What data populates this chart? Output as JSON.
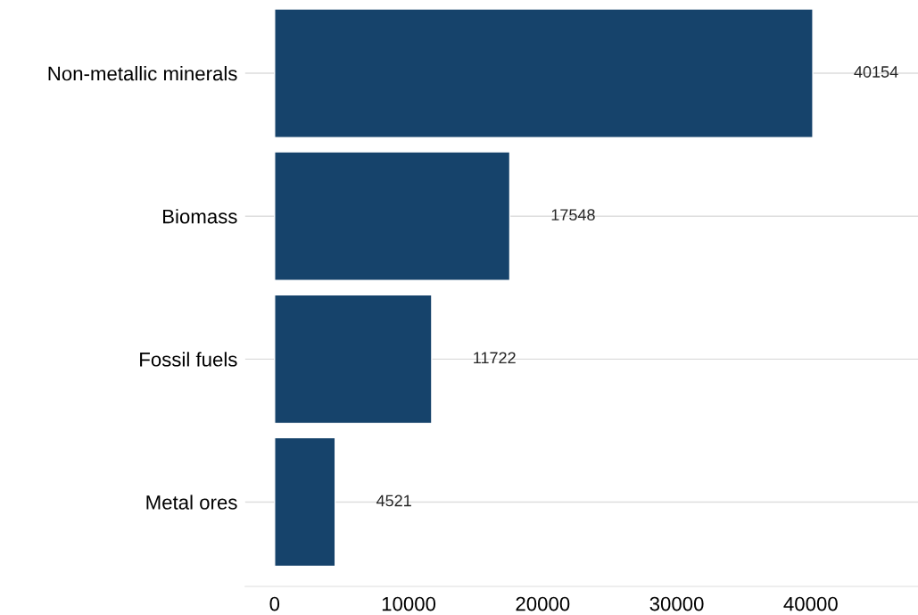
{
  "chart_data": {
    "type": "bar",
    "orientation": "horizontal",
    "categories": [
      "Non-metallic minerals",
      "Biomass",
      "Fossil fuels",
      "Metal ores"
    ],
    "values": [
      40154,
      17548,
      11722,
      4521
    ],
    "color": "#16436b",
    "xlim": [
      -2200,
      48000
    ],
    "xticks": [
      0,
      10000,
      20000,
      30000,
      40000
    ],
    "grid": "y",
    "data_labels": true
  }
}
